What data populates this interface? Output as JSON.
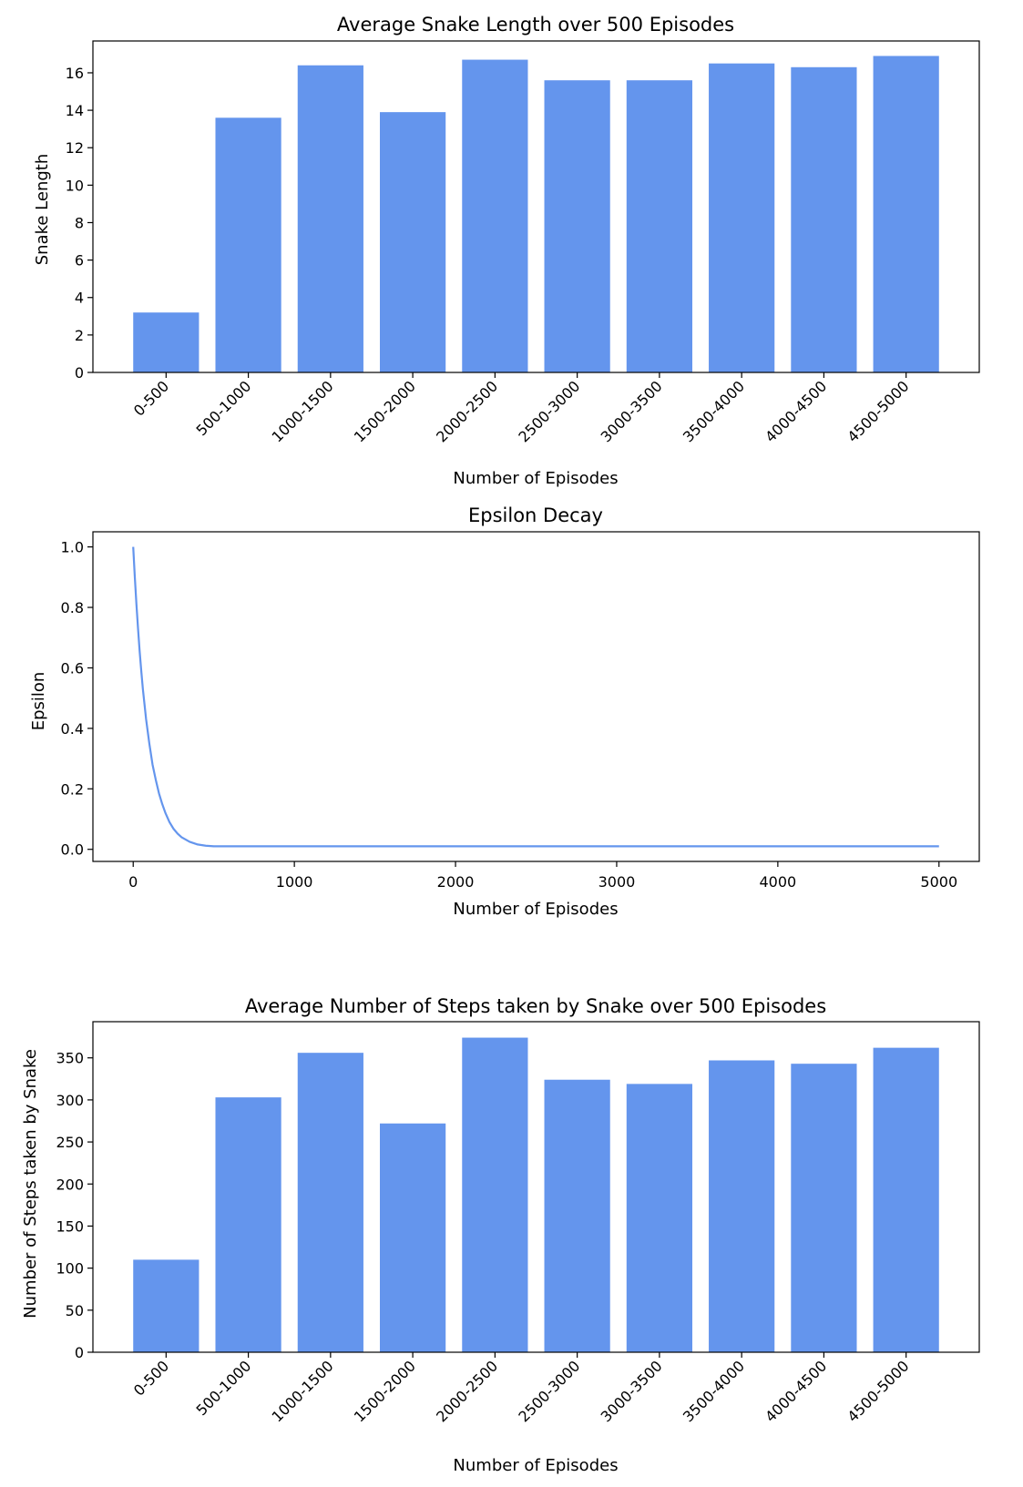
{
  "colors": {
    "bar": "#6495ED",
    "line": "#6495ED",
    "axis": "#000000",
    "background": "#ffffff"
  },
  "chart_data": [
    {
      "type": "bar",
      "title": "Average Snake Length over 500 Episodes",
      "xlabel": "Number of Episodes",
      "ylabel": "Snake Length",
      "categories": [
        "0-500",
        "500-1000",
        "1000-1500",
        "1500-2000",
        "2000-2500",
        "2500-3000",
        "3000-3500",
        "3500-4000",
        "4000-4500",
        "4500-5000"
      ],
      "values": [
        3.2,
        13.6,
        16.4,
        13.9,
        16.7,
        15.6,
        15.6,
        16.5,
        16.3,
        16.9
      ],
      "ylim": [
        0,
        17.7
      ],
      "yticks": [
        0,
        2,
        4,
        6,
        8,
        10,
        12,
        14,
        16
      ],
      "grid": false,
      "xtick_rotation": -45
    },
    {
      "type": "line",
      "title": "Epsilon Decay",
      "xlabel": "Number of Episodes",
      "ylabel": "Epsilon",
      "x": [
        0,
        10,
        20,
        30,
        40,
        50,
        60,
        70,
        80,
        90,
        100,
        120,
        140,
        160,
        180,
        200,
        225,
        250,
        275,
        300,
        350,
        400,
        450,
        500,
        600,
        700,
        800,
        1000,
        2000,
        3000,
        4000,
        5000
      ],
      "y": [
        1.0,
        0.9,
        0.81,
        0.73,
        0.655,
        0.59,
        0.53,
        0.48,
        0.43,
        0.39,
        0.35,
        0.28,
        0.23,
        0.185,
        0.15,
        0.12,
        0.09,
        0.068,
        0.052,
        0.04,
        0.025,
        0.016,
        0.012,
        0.01,
        0.01,
        0.01,
        0.01,
        0.01,
        0.01,
        0.01,
        0.01,
        0.01
      ],
      "xlim": [
        -250,
        5250
      ],
      "ylim": [
        -0.04,
        1.05
      ],
      "xticks": [
        0,
        1000,
        2000,
        3000,
        4000,
        5000
      ],
      "yticks": [
        0.0,
        0.2,
        0.4,
        0.6,
        0.8,
        1.0
      ],
      "ytick_labels": [
        "0.0",
        "0.2",
        "0.4",
        "0.6",
        "0.8",
        "1.0"
      ],
      "grid": false
    },
    {
      "type": "bar",
      "title": "Average Number of Steps taken by Snake over 500 Episodes",
      "xlabel": "Number of Episodes",
      "ylabel": "Number of Steps taken by Snake",
      "categories": [
        "0-500",
        "500-1000",
        "1000-1500",
        "1500-2000",
        "2000-2500",
        "2500-3000",
        "3000-3500",
        "3500-4000",
        "4000-4500",
        "4500-5000"
      ],
      "values": [
        110,
        303,
        356,
        272,
        374,
        324,
        319,
        347,
        343,
        362
      ],
      "ylim": [
        0,
        393
      ],
      "yticks": [
        0,
        50,
        100,
        150,
        200,
        250,
        300,
        350
      ],
      "grid": false,
      "xtick_rotation": -45
    }
  ]
}
